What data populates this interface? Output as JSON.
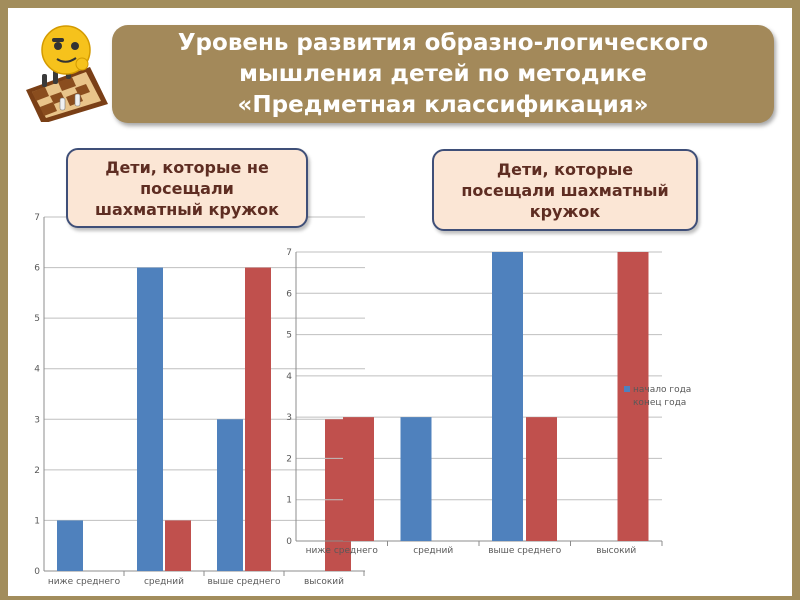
{
  "header": {
    "title": "Уровень развития образно-логического\nмышления детей по  методике\n«Предметная классификация»"
  },
  "callouts": {
    "left": "Дети, которые не\nпосещали\nшахматный кружок",
    "right": "Дети, которые\nпосещали шахматный\nкружок"
  },
  "colors": {
    "start_of_year": "#4f81bd",
    "end_of_year": "#c0504d",
    "gridline": "#bfbfbf",
    "frame": "#a28d5c",
    "title_bg": "#a3895a"
  },
  "chart_data": [
    {
      "type": "bar",
      "categories": [
        "ниже среднего",
        "средний",
        "выше среднего",
        "высокий"
      ],
      "series": [
        {
          "name": "начало года",
          "values": [
            1,
            6,
            3,
            null
          ]
        },
        {
          "name": "конец года",
          "values": [
            null,
            1,
            6,
            3
          ]
        }
      ],
      "ylim": [
        0,
        7
      ],
      "yticks": [
        "0",
        "1",
        "2",
        "3",
        "4",
        "5",
        "6",
        "7"
      ],
      "grid": true,
      "legend": "none"
    },
    {
      "type": "bar",
      "categories": [
        "ниже среднего",
        "средний",
        "выше среднего",
        "высокий"
      ],
      "series": [
        {
          "name": "начало года",
          "values": [
            null,
            3,
            7,
            null
          ]
        },
        {
          "name": "конец года",
          "values": [
            3,
            null,
            3,
            7
          ]
        }
      ],
      "ylim": [
        0,
        7
      ],
      "yticks": [
        "0",
        "1",
        "2",
        "3",
        "4",
        "5",
        "6",
        "7"
      ],
      "grid": true,
      "legend": "right",
      "legend_entries": [
        "начало года",
        "конец года"
      ]
    }
  ]
}
